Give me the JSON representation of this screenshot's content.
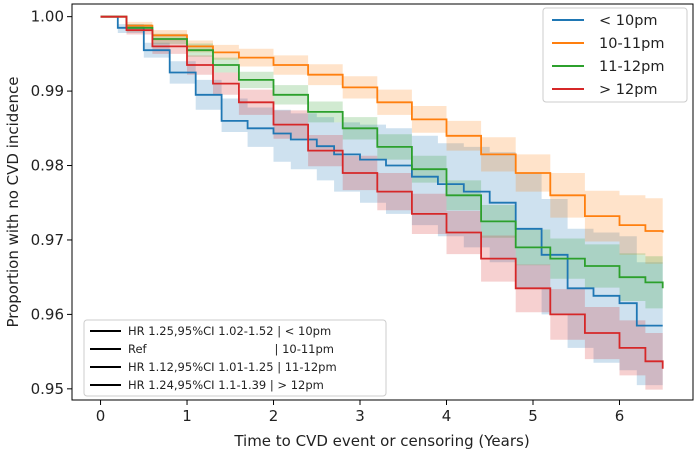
{
  "chart_data": {
    "type": "line",
    "xlabel": "Time to CVD event or censoring (Years)",
    "ylabel": "Proportion with no CVD incidence",
    "xlim": [
      -0.33,
      6.85
    ],
    "ylim": [
      0.9485,
      1.0017
    ],
    "xticks": [
      0,
      1,
      2,
      3,
      4,
      5,
      6
    ],
    "yticks": [
      0.95,
      0.96,
      0.97,
      0.98,
      0.99,
      1.0
    ],
    "ytick_labels": [
      "0.95",
      "0.96",
      "0.97",
      "0.98",
      "0.99",
      "1.00"
    ],
    "legend_position": "top-right",
    "series": [
      {
        "name": "< 10pm",
        "color": "#1f77b4",
        "x": [
          0,
          0.2,
          0.5,
          0.8,
          1.1,
          1.4,
          1.7,
          2.0,
          2.2,
          2.5,
          2.7,
          3.0,
          3.3,
          3.6,
          3.9,
          4.2,
          4.5,
          4.8,
          5.1,
          5.4,
          5.7,
          6.0,
          6.2,
          6.5
        ],
        "y": [
          1.0,
          0.9985,
          0.9955,
          0.9925,
          0.9895,
          0.986,
          0.985,
          0.9843,
          0.9835,
          0.9826,
          0.9815,
          0.9808,
          0.98,
          0.9785,
          0.9775,
          0.9765,
          0.975,
          0.9715,
          0.968,
          0.9635,
          0.9625,
          0.9615,
          0.9585,
          0.9585
        ],
        "lower": [
          1.0,
          0.9978,
          0.9945,
          0.991,
          0.9875,
          0.9845,
          0.9825,
          0.9805,
          0.9795,
          0.978,
          0.9765,
          0.975,
          0.9735,
          0.972,
          0.9705,
          0.969,
          0.967,
          0.9635,
          0.96,
          0.9555,
          0.9535,
          0.9525,
          0.9505,
          0.9505
        ],
        "upper": [
          1.0,
          0.999,
          0.9965,
          0.994,
          0.9915,
          0.989,
          0.9878,
          0.9875,
          0.987,
          0.9865,
          0.9858,
          0.9855,
          0.985,
          0.984,
          0.983,
          0.9825,
          0.9818,
          0.979,
          0.9755,
          0.9715,
          0.971,
          0.9705,
          0.967,
          0.967
        ]
      },
      {
        "name": "10-11pm",
        "color": "#ff7f0e",
        "x": [
          0,
          0.3,
          0.6,
          1.0,
          1.3,
          1.6,
          2.0,
          2.4,
          2.8,
          3.2,
          3.6,
          4.0,
          4.4,
          4.8,
          5.2,
          5.6,
          6.0,
          6.3,
          6.5
        ],
        "y": [
          1.0,
          0.9988,
          0.9975,
          0.996,
          0.9952,
          0.9945,
          0.9935,
          0.9922,
          0.9905,
          0.9885,
          0.9862,
          0.984,
          0.9815,
          0.979,
          0.976,
          0.9732,
          0.972,
          0.9712,
          0.971
        ],
        "lower": [
          1.0,
          0.9983,
          0.9968,
          0.9952,
          0.9942,
          0.9933,
          0.9922,
          0.9908,
          0.989,
          0.9868,
          0.9844,
          0.982,
          0.9792,
          0.9765,
          0.973,
          0.9698,
          0.968,
          0.9668,
          0.9662
        ],
        "upper": [
          1.0,
          0.9993,
          0.9982,
          0.9968,
          0.9962,
          0.9957,
          0.9948,
          0.9936,
          0.992,
          0.9902,
          0.988,
          0.986,
          0.9838,
          0.9815,
          0.979,
          0.9766,
          0.976,
          0.9756,
          0.9758
        ]
      },
      {
        "name": "11-12pm",
        "color": "#2ca02c",
        "x": [
          0,
          0.3,
          0.6,
          1.0,
          1.3,
          1.6,
          2.0,
          2.4,
          2.8,
          3.2,
          3.6,
          4.0,
          4.4,
          4.8,
          5.2,
          5.6,
          6.0,
          6.3,
          6.5
        ],
        "y": [
          1.0,
          0.9985,
          0.997,
          0.9955,
          0.9935,
          0.9915,
          0.9895,
          0.9872,
          0.985,
          0.9825,
          0.9795,
          0.976,
          0.9725,
          0.969,
          0.9675,
          0.9665,
          0.965,
          0.9643,
          0.9635
        ],
        "lower": [
          1.0,
          0.998,
          0.9963,
          0.9946,
          0.9925,
          0.9904,
          0.9882,
          0.9858,
          0.9835,
          0.9808,
          0.9777,
          0.974,
          0.9703,
          0.9666,
          0.9648,
          0.9636,
          0.9618,
          0.9608,
          0.9598
        ],
        "upper": [
          1.0,
          0.999,
          0.9977,
          0.9964,
          0.9945,
          0.9926,
          0.9908,
          0.9886,
          0.9865,
          0.9842,
          0.9813,
          0.978,
          0.9747,
          0.9714,
          0.9702,
          0.9694,
          0.9682,
          0.9678,
          0.9672
        ]
      },
      {
        "name": "> 12pm",
        "color": "#d62728",
        "x": [
          0,
          0.3,
          0.6,
          1.0,
          1.3,
          1.6,
          2.0,
          2.4,
          2.8,
          3.2,
          3.6,
          4.0,
          4.4,
          4.8,
          5.2,
          5.6,
          6.0,
          6.3,
          6.5
        ],
        "y": [
          1.0,
          0.9982,
          0.996,
          0.9935,
          0.991,
          0.9885,
          0.9855,
          0.982,
          0.979,
          0.9765,
          0.9735,
          0.971,
          0.9675,
          0.9635,
          0.96,
          0.9575,
          0.9555,
          0.9537,
          0.9527
        ],
        "lower": [
          1.0,
          0.9976,
          0.995,
          0.9922,
          0.9895,
          0.9868,
          0.9836,
          0.9799,
          0.9767,
          0.974,
          0.9708,
          0.9681,
          0.9644,
          0.9603,
          0.9566,
          0.954,
          0.9518,
          0.9499,
          0.9488
        ],
        "upper": [
          1.0,
          0.9988,
          0.997,
          0.9948,
          0.9925,
          0.9902,
          0.9874,
          0.9841,
          0.9813,
          0.979,
          0.9762,
          0.9739,
          0.9706,
          0.9667,
          0.9634,
          0.961,
          0.9592,
          0.9575,
          0.9566
        ]
      }
    ],
    "annotation_lines": [
      "HR 1.25,95%CI 1.02-1.52 | < 10pm",
      "Ref                                   | 10-11pm",
      "HR 1.12,95%CI 1.01-1.25 | 11-12pm",
      "HR 1.24,95%CI 1.1-1.39 | > 12pm"
    ]
  }
}
